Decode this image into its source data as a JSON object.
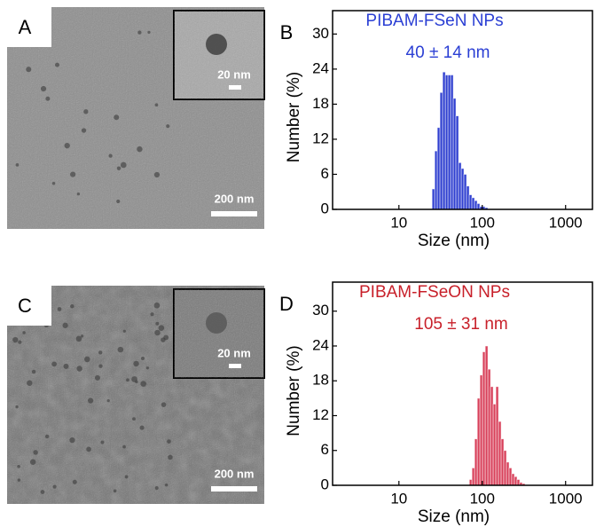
{
  "images": [
    {
      "label": "A",
      "scale_bar": "200 nm",
      "inset_scale_bar": "20 nm"
    },
    {
      "label": "C",
      "scale_bar": "200 nm",
      "inset_scale_bar": "20 nm"
    }
  ],
  "chart_data": [
    {
      "type": "histogram",
      "panel_label": "B",
      "title": "PIBAM-FSeN NPs",
      "annotation": "40 ± 14 nm",
      "title_color": "#2b3fd4",
      "color": "#2f3fd0",
      "x_label": "Size (nm)",
      "y_label": "Number (%)",
      "x_scale": "log",
      "xlim": [
        1.6,
        2100
      ],
      "xticks": [
        10,
        100,
        1000
      ],
      "ylim": [
        0,
        34
      ],
      "yticks": [
        0,
        6,
        12,
        18,
        24,
        30
      ],
      "bins": [
        25,
        26.9,
        28.9,
        31.1,
        33.5,
        36.1,
        38.8,
        41.8,
        44.9,
        48.3,
        52.0,
        56.0,
        60.2,
        64.8,
        69.8,
        75.1,
        80.8,
        86.9,
        93.5,
        100.6,
        108.3,
        116.5
      ],
      "counts": [
        3.5,
        10,
        14,
        20,
        23.5,
        23,
        23,
        23,
        19,
        16,
        8,
        7,
        6,
        4,
        2.5,
        2,
        1.5,
        1,
        0.5,
        0.5,
        0.3
      ]
    },
    {
      "type": "histogram",
      "panel_label": "D",
      "title": "PIBAM-FSeON NPs",
      "annotation": "105 ± 31 nm",
      "title_color": "#c8202a",
      "color": "#d8405a",
      "x_label": "Size (nm)",
      "y_label": "Number (%)",
      "x_scale": "log",
      "xlim": [
        1.6,
        2100
      ],
      "xticks": [
        10,
        100,
        1000
      ],
      "ylim": [
        0,
        35
      ],
      "yticks": [
        0,
        6,
        12,
        18,
        24,
        30
      ],
      "bins": [
        70,
        75.3,
        81.0,
        87.2,
        93.8,
        100.9,
        108.6,
        116.9,
        125.7,
        135.3,
        145.6,
        156.6,
        168.5,
        181.3,
        195.1,
        209.9,
        225.9,
        243.0,
        261.5,
        281.4,
        302.8,
        325.8
      ],
      "counts": [
        1,
        3,
        8,
        15,
        19,
        23,
        24,
        20,
        17,
        14,
        17,
        11,
        8,
        6,
        4,
        3,
        2,
        1.5,
        1,
        0.5,
        0.3
      ]
    }
  ]
}
